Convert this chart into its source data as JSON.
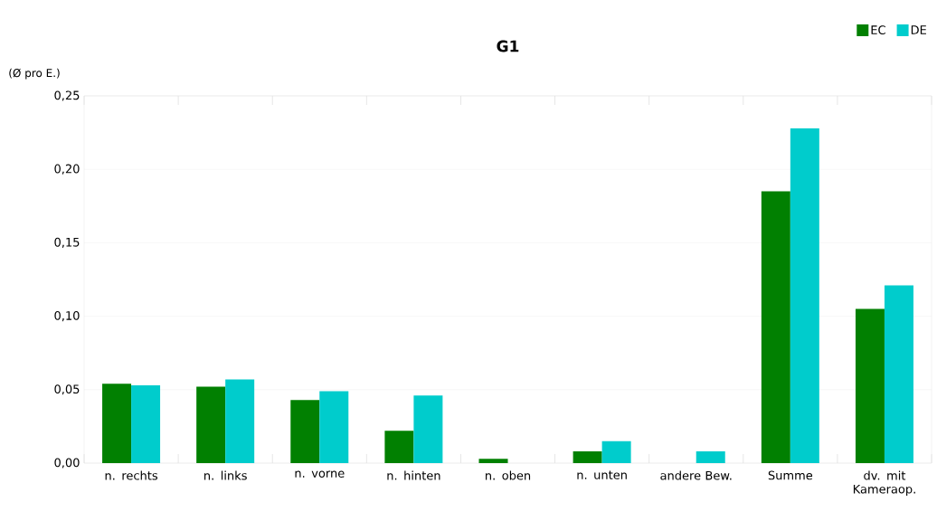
{
  "chart_data": {
    "type": "bar",
    "title": "G1",
    "ylabel": "(Ø pro E.)",
    "categories": [
      "n. rechts",
      "n. links",
      "n. vorne",
      "n. hinten",
      "n. oben",
      "n. unten",
      "andere Bew.",
      "Summe",
      "dv. mit Kameraop."
    ],
    "series": [
      {
        "name": "EC",
        "color": "#018001",
        "values": [
          0.054,
          0.052,
          0.043,
          0.022,
          0.003,
          0.008,
          0,
          0.185,
          0.105
        ]
      },
      {
        "name": "DE",
        "color": "#00cccc",
        "values": [
          0.053,
          0.057,
          0.049,
          0.046,
          0,
          0.015,
          0.008,
          0.228,
          0.121
        ]
      }
    ],
    "ylim": [
      0,
      0.25
    ],
    "yticks": [
      {
        "value": 0,
        "label": "0,00"
      },
      {
        "value": 0.05,
        "label": "0,05"
      },
      {
        "value": 0.1,
        "label": "0,10"
      },
      {
        "value": 0.15,
        "label": "0,15"
      },
      {
        "value": 0.2,
        "label": "0,20"
      },
      {
        "value": 0.25,
        "label": "0,25"
      }
    ],
    "grid": "y",
    "legend": "top right"
  }
}
